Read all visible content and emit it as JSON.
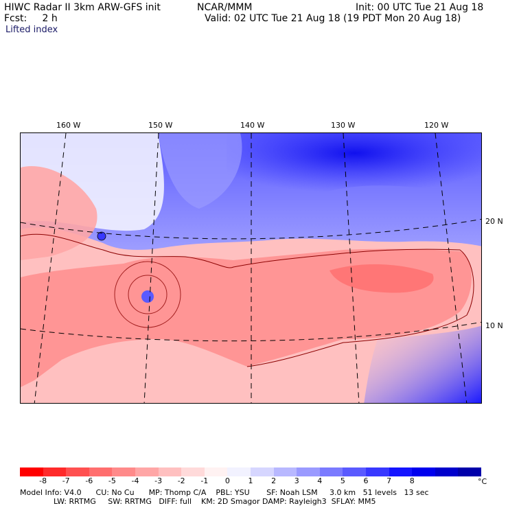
{
  "header": {
    "title_left": "HIWC Radar II 3km ARW-GFS init",
    "title_center": "NCAR/MMM",
    "init": "Init: 00 UTC Tue 21 Aug 18",
    "fcst": "Fcst:     2 h",
    "valid": "Valid: 02 UTC Tue 21 Aug 18 (19 PDT Mon 20 Aug 18)",
    "field": "Lifted index"
  },
  "map": {
    "lon_labels": [
      "160 W",
      "150 W",
      "140 W",
      "130 W",
      "120 W"
    ],
    "lat_labels": [
      "20 N",
      "10 N"
    ]
  },
  "colorbar": {
    "ticks": [
      "-8",
      "-7",
      "-6",
      "-5",
      "-4",
      "-3",
      "-2",
      "-1",
      "0",
      "1",
      "2",
      "3",
      "4",
      "5",
      "6",
      "7",
      "8"
    ],
    "unit": "°C",
    "colors": [
      "#ff0000",
      "#ff2a2a",
      "#ff5050",
      "#ff6e6e",
      "#ff8a8a",
      "#ffa6a6",
      "#ffc0c0",
      "#ffdada",
      "#fff2f2",
      "#f2f2ff",
      "#d6d6ff",
      "#b8b8ff",
      "#9a9aff",
      "#7a7aff",
      "#5a5aff",
      "#3838ff",
      "#1414ff",
      "#0000ee",
      "#0000cc",
      "#0000aa"
    ]
  },
  "footer": {
    "line1": "Model Info: V4.0      CU: No Cu      MP: Thomp C/A    PBL: YSU       SF: Noah LSM     3.0 km   51 levels   13 sec",
    "line2": "              LW: RRTMG     SW: RRTMG   DIFF: full    KM: 2D Smagor DAMP: Rayleigh3  SFLAY: MM5"
  }
}
